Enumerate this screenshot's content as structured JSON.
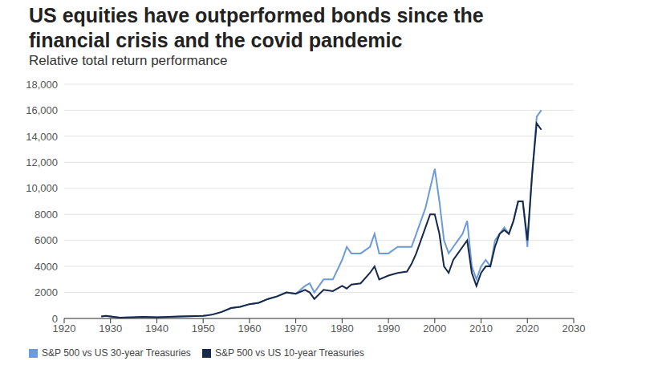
{
  "chart_data": {
    "type": "line",
    "title": "US equities have outperformed bonds since the financial crisis and the covid pandemic",
    "subtitle": "Relative total return performance",
    "x": [
      1928,
      1929,
      1930,
      1932,
      1935,
      1937,
      1940,
      1945,
      1950,
      1952,
      1954,
      1956,
      1958,
      1960,
      1962,
      1964,
      1966,
      1968,
      1970,
      1972,
      1973,
      1974,
      1976,
      1978,
      1980,
      1981,
      1982,
      1984,
      1986,
      1987,
      1988,
      1990,
      1992,
      1994,
      1995,
      1996,
      1997,
      1998,
      1999,
      2000,
      2001,
      2002,
      2003,
      2004,
      2005,
      2006,
      2007,
      2008,
      2009,
      2010,
      2011,
      2012,
      2013,
      2014,
      2015,
      2016,
      2017,
      2018,
      2019,
      2020,
      2021,
      2022,
      2023
    ],
    "series": [
      {
        "name": "S&P 500 vs US 30-year Treasuries",
        "color": "#6b9bd8",
        "values": [
          150,
          200,
          150,
          60,
          100,
          120,
          100,
          150,
          200,
          300,
          500,
          800,
          900,
          1100,
          1200,
          1500,
          1700,
          2000,
          1900,
          2500,
          2700,
          2000,
          3000,
          3000,
          4500,
          5500,
          5000,
          5000,
          5500,
          6500,
          5000,
          5000,
          5500,
          5500,
          5500,
          6500,
          7500,
          8500,
          10000,
          11500,
          9000,
          6000,
          5000,
          5500,
          6000,
          6500,
          7500,
          4000,
          3000,
          4000,
          4500,
          4000,
          6000,
          6500,
          7000,
          6500,
          7500,
          9000,
          9000,
          5500,
          11000,
          15500,
          16000
        ]
      },
      {
        "name": "S&P 500 vs US 10-year Treasuries",
        "color": "#16294a",
        "values": [
          150,
          200,
          150,
          60,
          100,
          120,
          100,
          150,
          200,
          300,
          500,
          800,
          900,
          1100,
          1200,
          1500,
          1700,
          2000,
          1900,
          2200,
          2000,
          1500,
          2200,
          2100,
          2500,
          2300,
          2600,
          2700,
          3500,
          4000,
          3000,
          3300,
          3500,
          3600,
          4200,
          5000,
          6000,
          7000,
          8000,
          8000,
          6500,
          4000,
          3500,
          4500,
          5000,
          5500,
          6000,
          3500,
          2500,
          3500,
          4000,
          4000,
          5500,
          6500,
          6800,
          6500,
          7500,
          9000,
          9000,
          6000,
          11000,
          15000,
          14500
        ]
      }
    ],
    "xlim": [
      1920,
      2030
    ],
    "xticks": [
      1920,
      1930,
      1940,
      1950,
      1960,
      1970,
      1980,
      1990,
      2000,
      2010,
      2020,
      2030
    ],
    "ylim": [
      0,
      18000
    ],
    "yticks": [
      0,
      2000,
      4000,
      6000,
      8000,
      {
        "value": 10000,
        "label": "10,000"
      },
      {
        "value": 12000,
        "label": "12,000"
      },
      {
        "value": 14000,
        "label": "14,000"
      },
      {
        "value": 16000,
        "label": "16,000"
      },
      {
        "value": 18000,
        "label": "18,000"
      }
    ],
    "grid": true,
    "legend": "bottom-left"
  }
}
